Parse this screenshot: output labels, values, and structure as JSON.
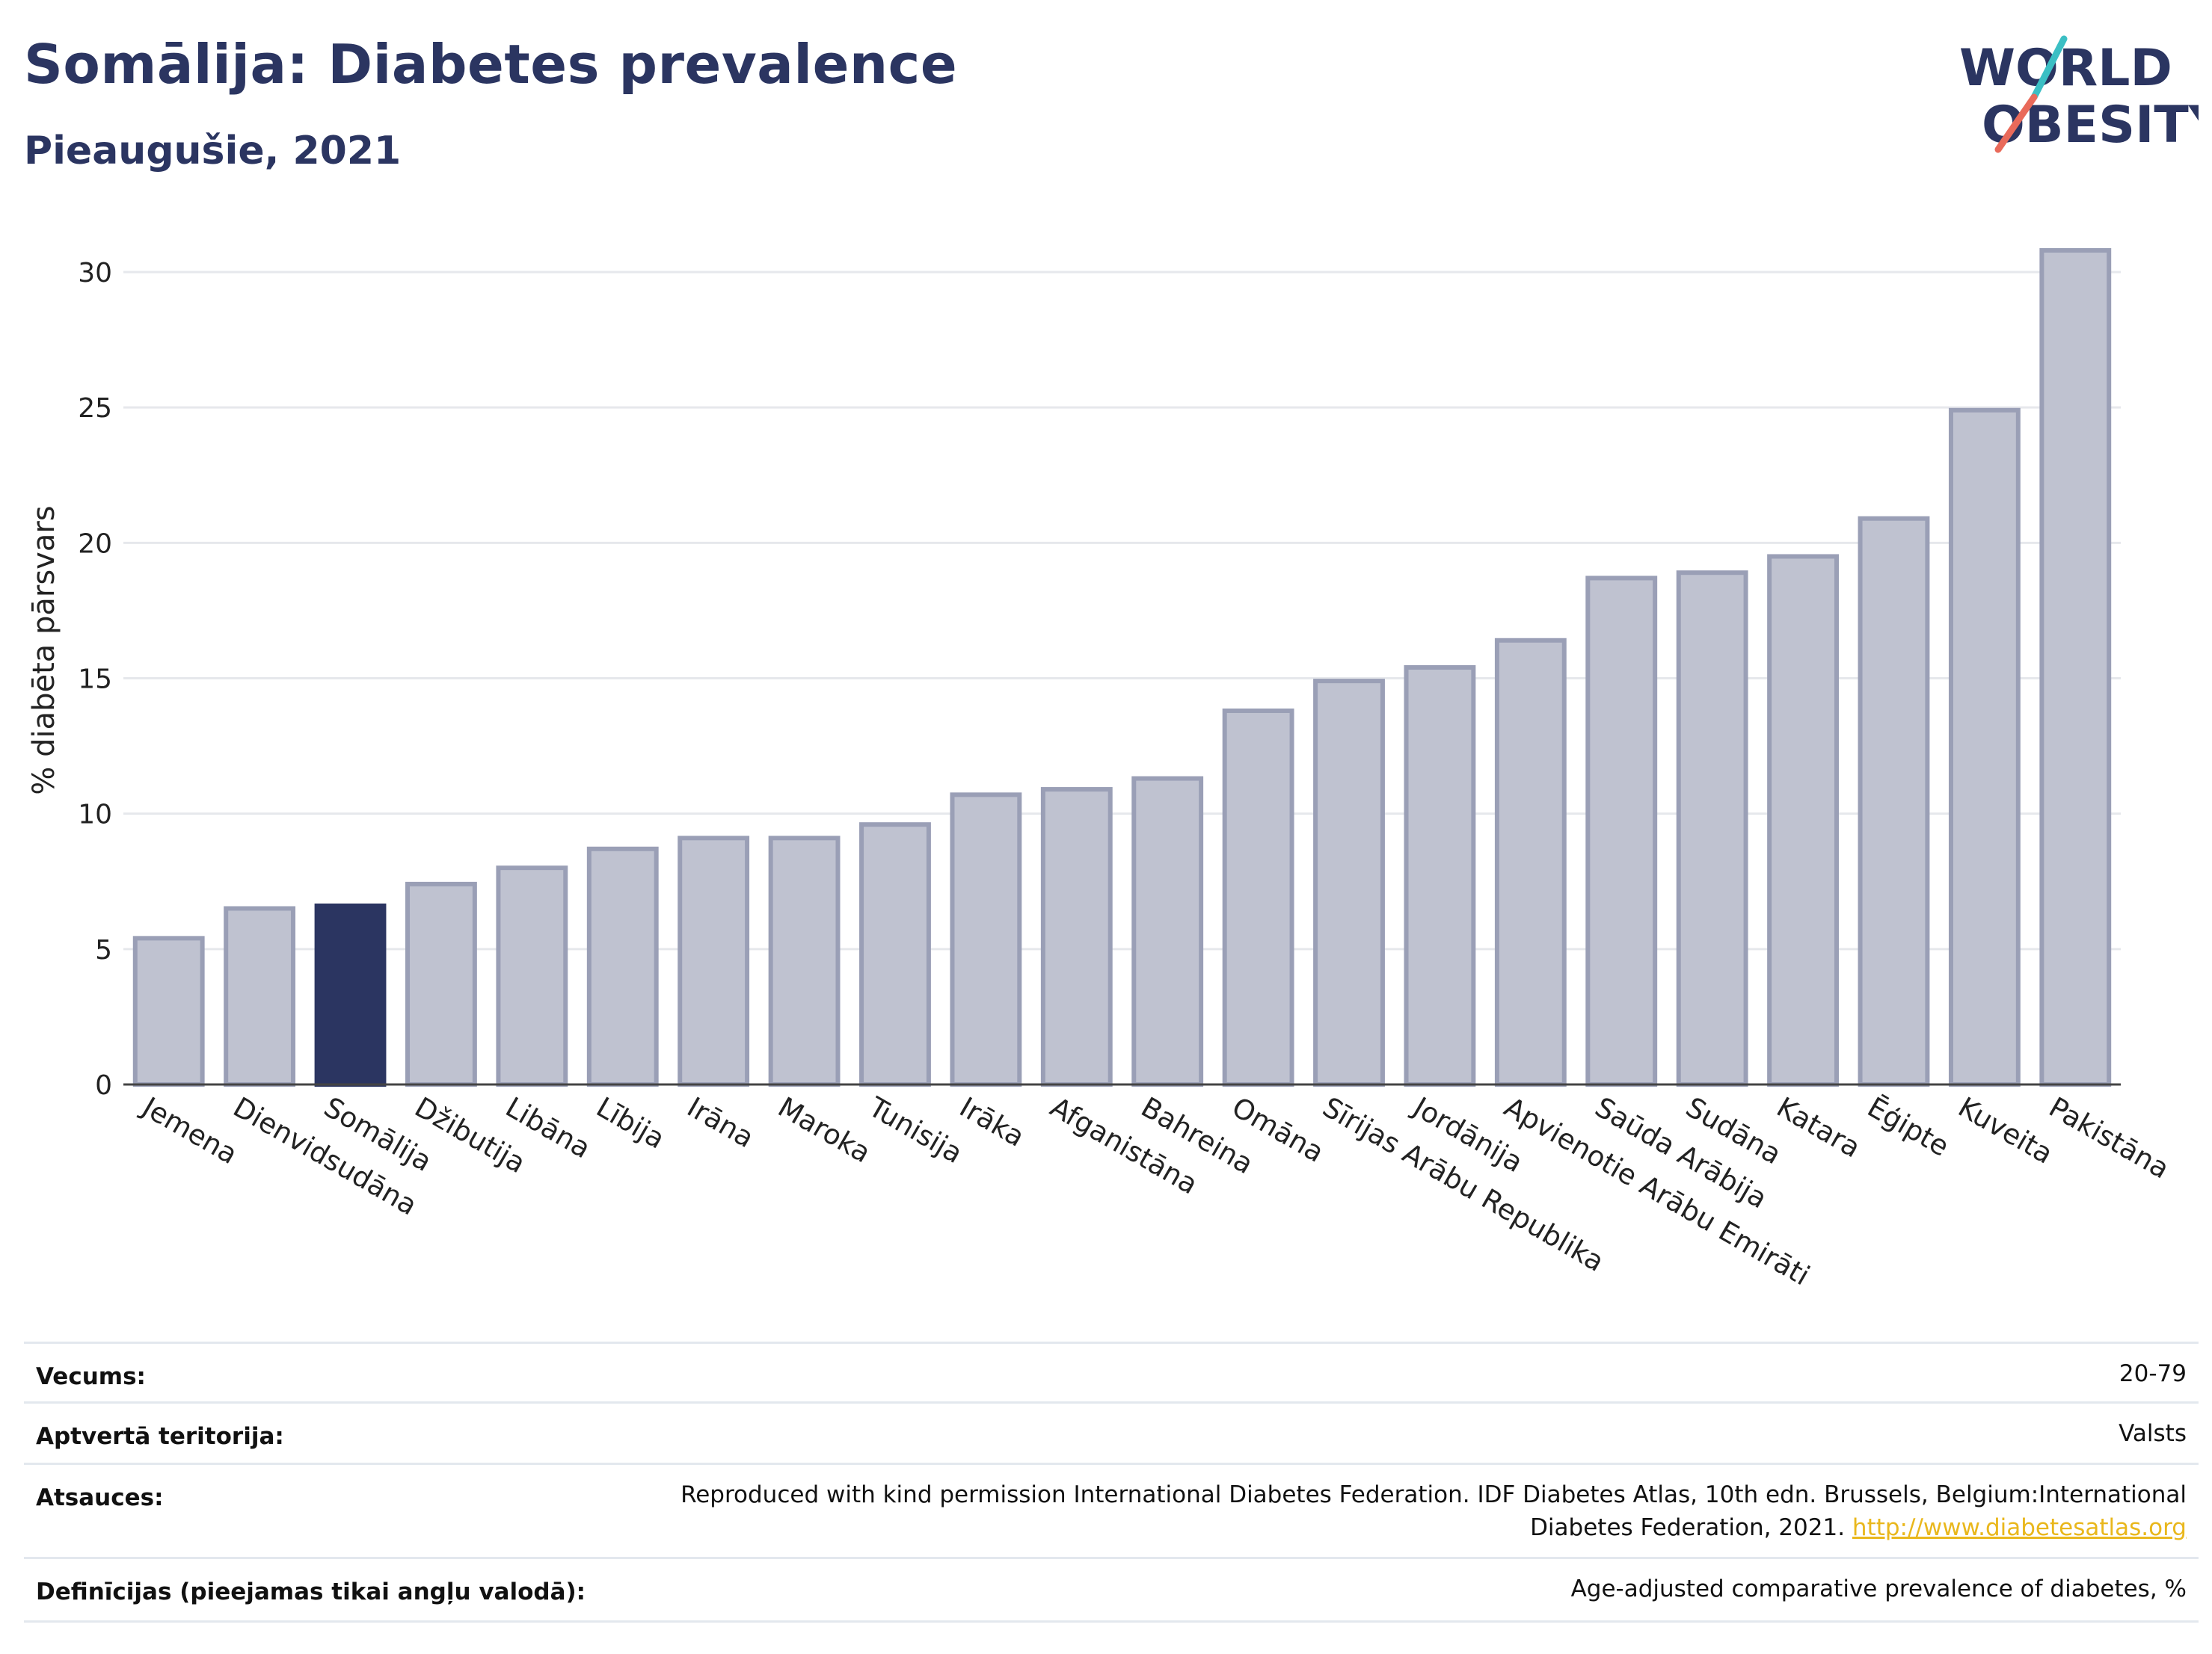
{
  "header": {
    "title": "Somālija: Diabetes prevalence",
    "subtitle": "Pieaugušie, 2021"
  },
  "logo": {
    "line1": "WORLD",
    "line2": "OBESITY",
    "accent_teal": "#3bbfc4",
    "accent_coral": "#e96a5a"
  },
  "colors": {
    "highlight": "#2b3561",
    "bar_fill": "#bfc2d0",
    "bar_stroke": "#9a9fb6",
    "grid": "#e6e8ec"
  },
  "chart_data": {
    "type": "bar",
    "title": "Somālija: Diabetes prevalence",
    "subtitle": "Pieaugušie, 2021",
    "xlabel": "",
    "ylabel": "% diabēta pārsvars",
    "ylim": [
      0,
      32
    ],
    "yticks": [
      0,
      5,
      10,
      15,
      20,
      25,
      30
    ],
    "grid": true,
    "highlight": "Somālija",
    "categories": [
      "Jemena",
      "Dienvidsudāna",
      "Somālija",
      "Džibutija",
      "Libāna",
      "Lībija",
      "Irāna",
      "Maroka",
      "Tunisija",
      "Irāka",
      "Afganistāna",
      "Bahreina",
      "Omāna",
      "Sīrijas Arābu Republika",
      "Jordānija",
      "Apvienotie Arābu Emirāti",
      "Saūda Arābija",
      "Sudāna",
      "Katara",
      "Ēģipte",
      "Kuveita",
      "Pakistāna"
    ],
    "values": [
      5.4,
      6.5,
      6.6,
      7.4,
      8.0,
      8.7,
      9.1,
      9.1,
      9.6,
      10.7,
      10.9,
      11.3,
      13.8,
      14.9,
      15.4,
      16.4,
      18.7,
      18.9,
      19.5,
      20.9,
      24.9,
      30.8
    ]
  },
  "metadata": {
    "rows": [
      {
        "key": "Vecums:",
        "value": "20-79"
      },
      {
        "key": "Aptvertā teritorija:",
        "value": "Valsts"
      },
      {
        "key": "Atsauces:",
        "value_line1": "Reproduced with kind permission International Diabetes Federation.  IDF Diabetes Atlas, 10th edn. Brussels, Belgium:International",
        "value_line2": "Diabetes Federation, 2021.",
        "link": "http://www.diabetesatlas.org"
      },
      {
        "key": "Definīcijas (pieejamas tikai angļu valodā):",
        "value": "Age-adjusted comparative prevalence of diabetes, %"
      }
    ]
  }
}
